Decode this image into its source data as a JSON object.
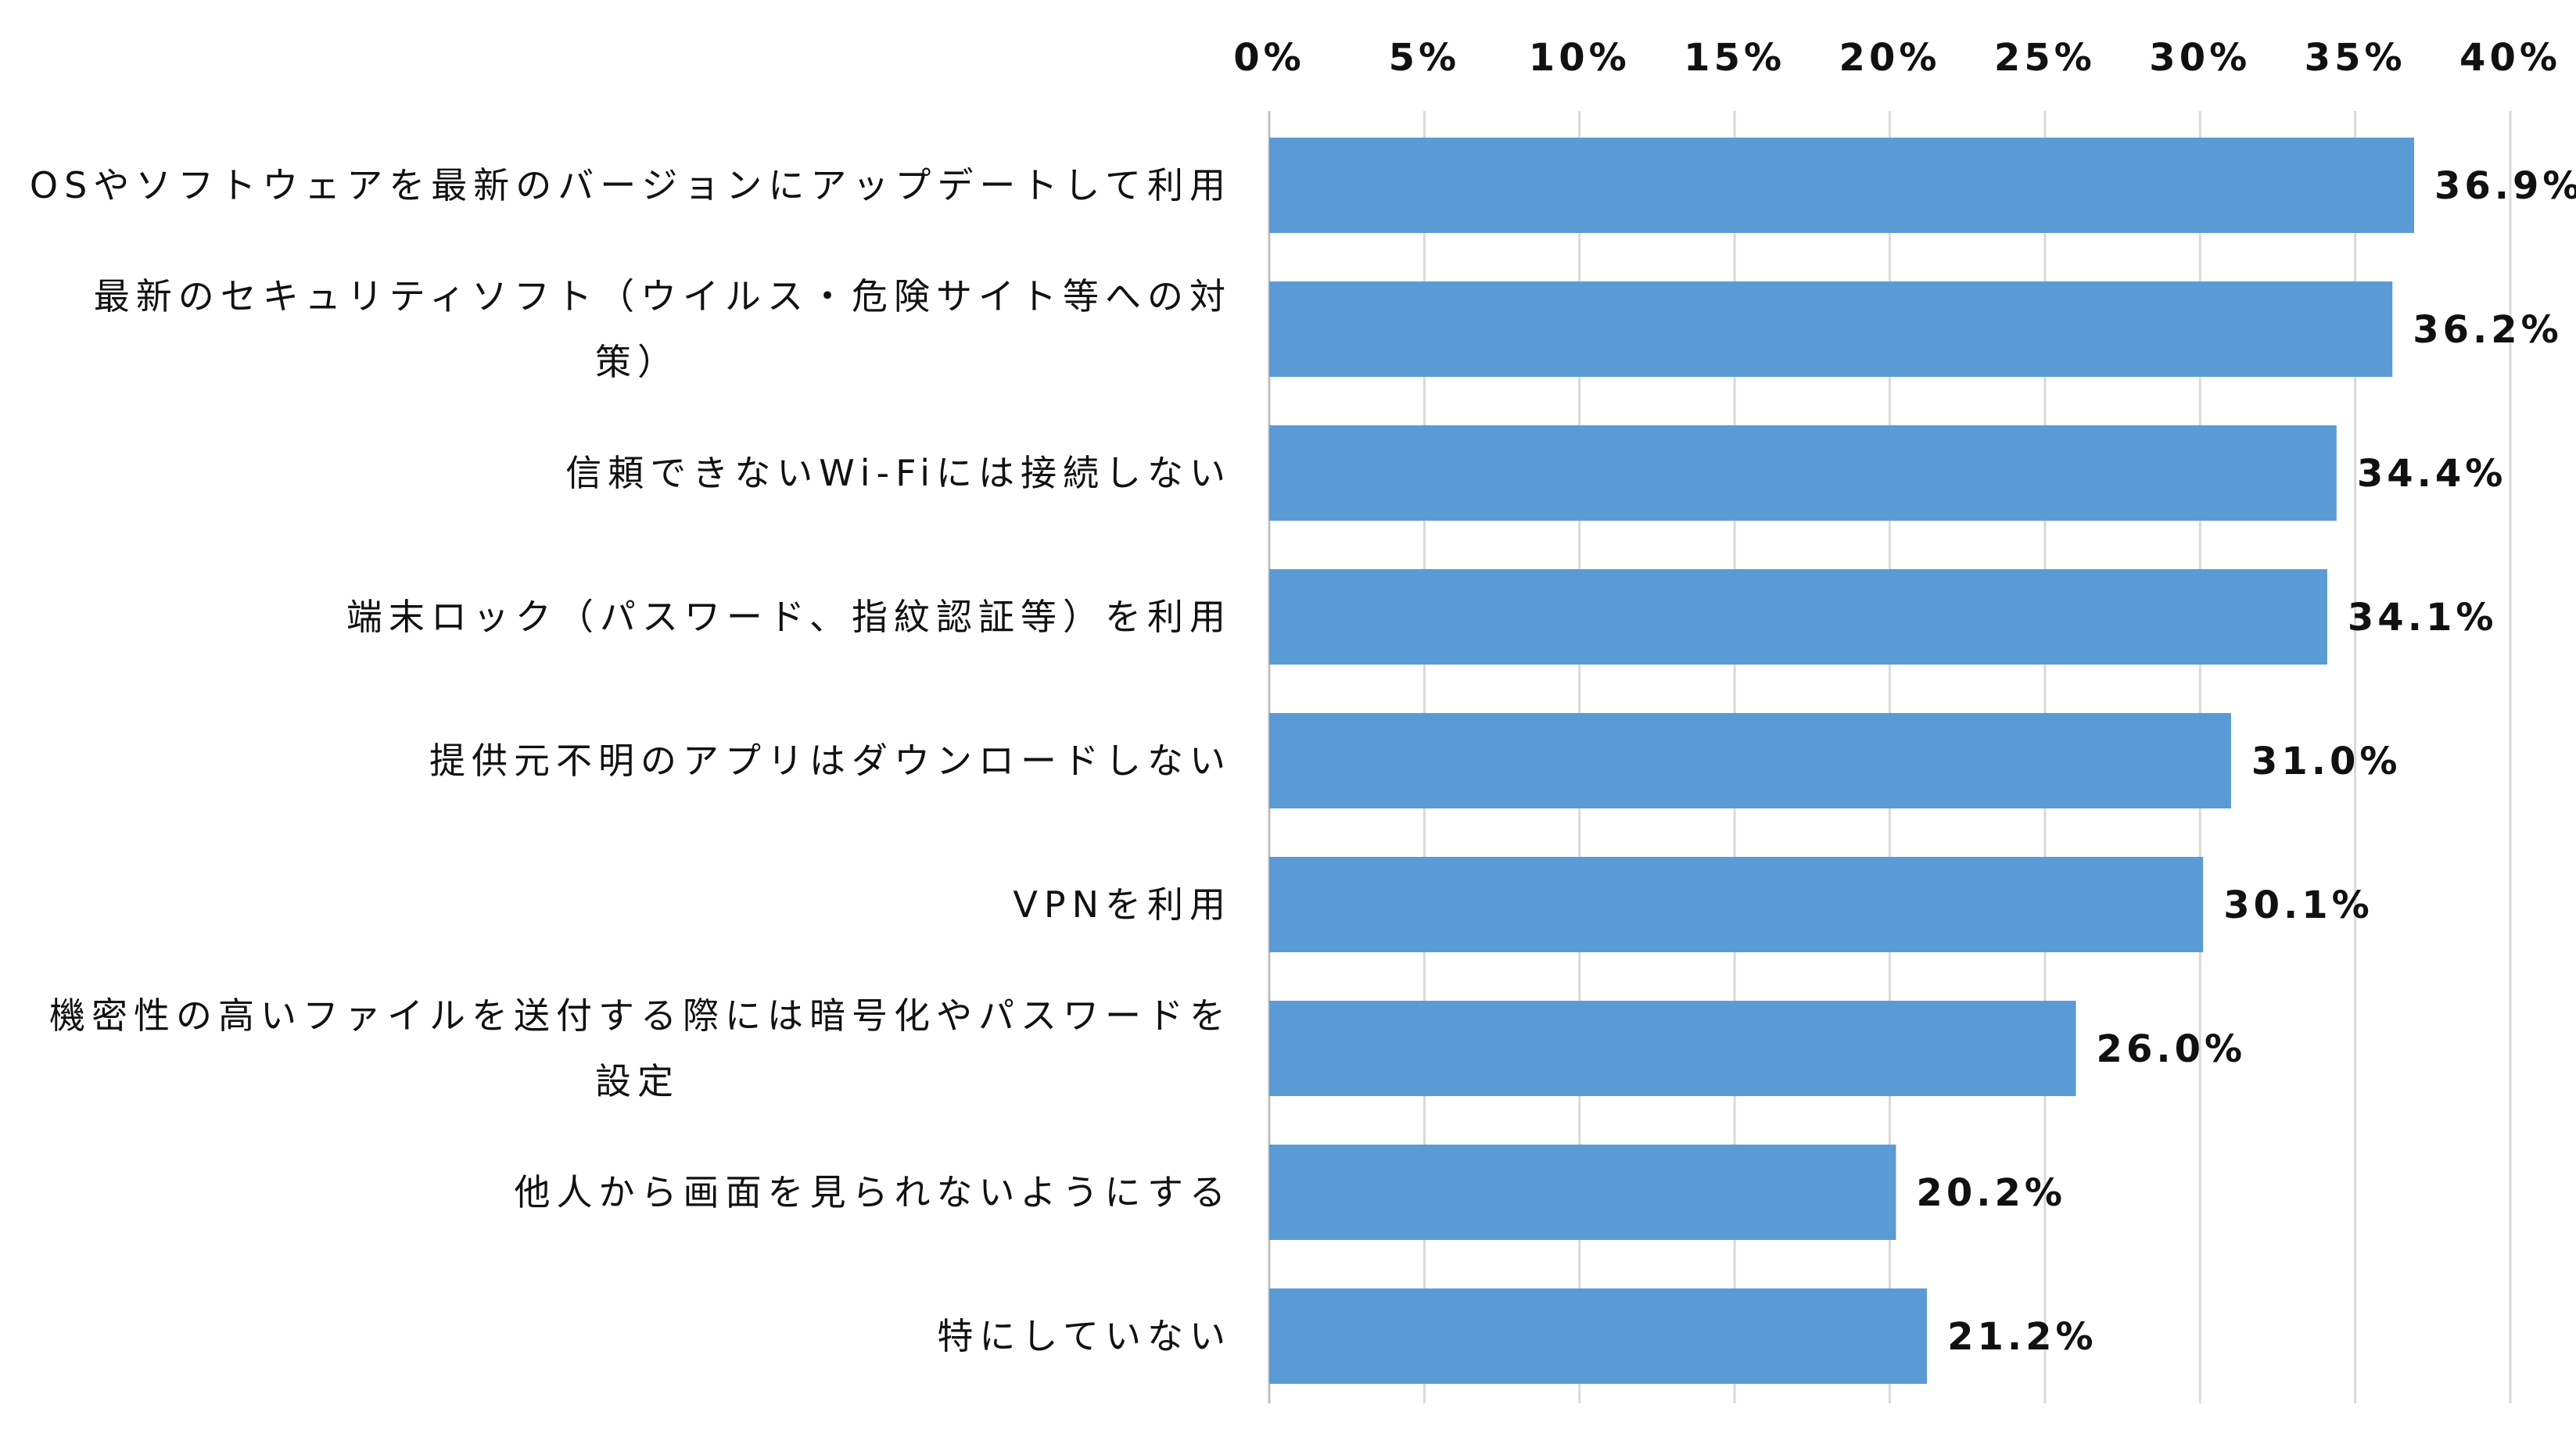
{
  "chart_data": {
    "type": "bar",
    "orientation": "horizontal",
    "title": "",
    "xlabel": "",
    "ylabel": "",
    "xlim": [
      0,
      40
    ],
    "x_ticks": [
      0,
      5,
      10,
      15,
      20,
      25,
      30,
      35,
      40
    ],
    "tick_suffix": "%",
    "grid": true,
    "legend": "none",
    "bar_color": "#5b9bd5",
    "categories": [
      [
        "OSやソフトウェアを最新のバージョンにアップデートして利用"
      ],
      [
        "最新のセキュリティソフト（ウイルス・危険サイト等への対",
        "策）"
      ],
      [
        "信頼できないWi-Fiには接続しない"
      ],
      [
        "端末ロック（パスワード、指紋認証等）を利用"
      ],
      [
        "提供元不明のアプリはダウンロードしない"
      ],
      [
        "VPNを利用"
      ],
      [
        "機密性の高いファイルを送付する際には暗号化やパスワードを",
        "設定"
      ],
      [
        "他人から画面を見られないようにする"
      ],
      [
        "特にしていない"
      ]
    ],
    "values": [
      36.9,
      36.2,
      34.4,
      34.1,
      31.0,
      30.1,
      26.0,
      20.2,
      21.2
    ],
    "value_labels": [
      "36.9%",
      "36.2%",
      "34.4%",
      "34.1%",
      "31.0%",
      "30.1%",
      "26.0%",
      "20.2%",
      "21.2%"
    ]
  }
}
